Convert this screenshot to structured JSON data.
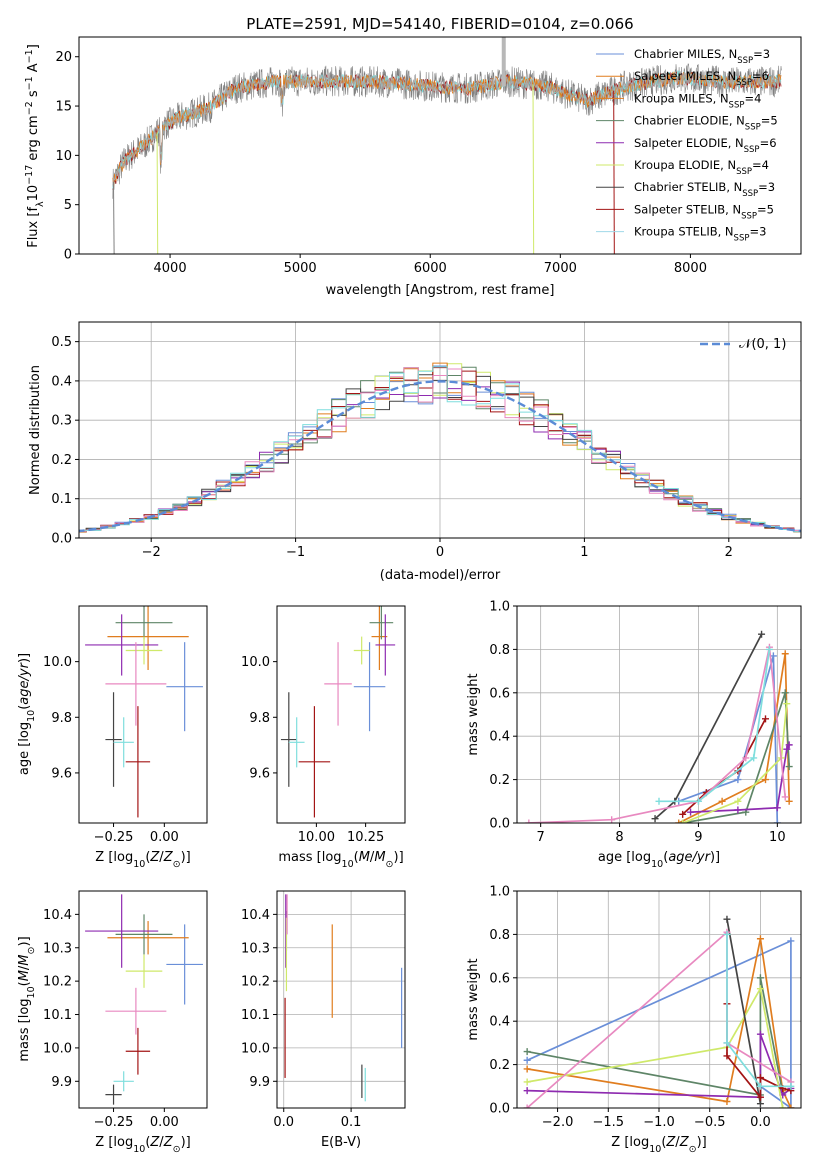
{
  "colors": [
    "#6a8fd8",
    "#e07d1f",
    "#5e8567",
    "#8e2bb0",
    "#cfe96a",
    "#444444",
    "#a31515",
    "#e889c0",
    "#7fdedd"
  ],
  "chart_data": [
    {
      "id": "spectrum",
      "type": "line",
      "title": "PLATE=2591, MJD=54140, FIBERID=0104, z=0.066",
      "xlabel": "wavelength [Angstrom, rest frame]",
      "ylabel": "Flux [f_λ10^−17 erg cm^−2 s^−1 A^−1]",
      "xlim": [
        3300,
        8850
      ],
      "ylim": [
        0,
        22
      ],
      "xticks": [
        4000,
        5000,
        6000,
        7000,
        8000
      ],
      "yticks": [
        0,
        5,
        10,
        15,
        20
      ],
      "wavelength_range": [
        3560,
        8700
      ],
      "continuum": [
        [
          3560,
          7.2
        ],
        [
          3650,
          9.5
        ],
        [
          3800,
          11
        ],
        [
          3950,
          13
        ],
        [
          4100,
          14
        ],
        [
          4300,
          14.8
        ],
        [
          4500,
          16.8
        ],
        [
          4800,
          17.5
        ],
        [
          5100,
          17.5
        ],
        [
          5400,
          17.5
        ],
        [
          5700,
          17.4
        ],
        [
          6000,
          17
        ],
        [
          6300,
          16.8
        ],
        [
          6600,
          17.5
        ],
        [
          6900,
          17
        ],
        [
          7200,
          15.5
        ],
        [
          7500,
          17
        ],
        [
          7900,
          17.9
        ],
        [
          8300,
          17.4
        ],
        [
          8700,
          17.5
        ]
      ],
      "legend": [
        {
          "name": "Chabrier MILES",
          "nssp": "3"
        },
        {
          "name": "Salpeter MILES",
          "nssp": "6"
        },
        {
          "name": "Kroupa MILES",
          "nssp": "4"
        },
        {
          "name": "Chabrier ELODIE",
          "nssp": "5"
        },
        {
          "name": "Salpeter ELODIE",
          "nssp": "6"
        },
        {
          "name": "Kroupa ELODIE",
          "nssp": "4"
        },
        {
          "name": "Chabrier STELIB",
          "nssp": "3"
        },
        {
          "name": "Salpeter STELIB",
          "nssp": "5"
        },
        {
          "name": "Kroupa STELIB",
          "nssp": "3"
        }
      ],
      "legend_colors": [
        "#6a8fd8",
        "#e07d1f",
        "#e07d1f",
        "#5e8567",
        "#8e2bb0",
        "#cfe96a",
        "#444444",
        "#a31515",
        "#9fd8e8"
      ],
      "nssp_label": "N",
      "nssp_sub": "SSP",
      "legend_loc": "top-right"
    },
    {
      "id": "residuals",
      "type": "line",
      "xlabel": "(data-model)/error",
      "ylabel": "Normed distribution",
      "xlim": [
        -2.5,
        2.5
      ],
      "ylim": [
        0,
        0.55
      ],
      "xticks": [
        -2,
        -1,
        0,
        1,
        2
      ],
      "yticks": [
        0.0,
        0.1,
        0.2,
        0.3,
        0.4,
        0.5
      ],
      "grid": true,
      "gaussian_label": "𝒩(0, 1)",
      "gaussian_color": "#5b8bd6",
      "legend_loc": "top-right"
    },
    {
      "id": "age-vs-z",
      "type": "scatter",
      "xlabel": "Z [log10(Z/Z⊙)]",
      "ylabel": "age  [log10(age/yr)]",
      "xlim": [
        -0.42,
        0.21
      ],
      "ylim": [
        9.42,
        10.2
      ],
      "xticks": [
        -0.25,
        0.0
      ],
      "yticks": [
        9.6,
        9.8,
        10.0
      ],
      "points": [
        {
          "x": 0.1,
          "y": 9.91,
          "xerr": 0.09,
          "yerr": 0.16
        },
        {
          "x": -0.08,
          "y": 10.09,
          "xerr": 0.2,
          "yerr": 0.12
        },
        {
          "x": -0.1,
          "y": 10.14,
          "xerr": 0.14,
          "yerr": 0.06
        },
        {
          "x": -0.21,
          "y": 10.06,
          "xerr": 0.18,
          "yerr": 0.11
        },
        {
          "x": -0.1,
          "y": 10.04,
          "xerr": 0.09,
          "yerr": 0.05
        },
        {
          "x": -0.25,
          "y": 9.72,
          "xerr": 0.04,
          "yerr": 0.17
        },
        {
          "x": -0.13,
          "y": 9.64,
          "xerr": 0.06,
          "yerr": 0.2
        },
        {
          "x": -0.14,
          "y": 9.92,
          "xerr": 0.15,
          "yerr": 0.15
        },
        {
          "x": -0.2,
          "y": 9.71,
          "xerr": 0.05,
          "yerr": 0.09
        }
      ]
    },
    {
      "id": "age-vs-mass",
      "type": "scatter",
      "xlabel": "mass [log10(M/M⊙)]",
      "ylabel": "",
      "xlim": [
        9.8,
        10.45
      ],
      "ylim": [
        9.42,
        10.2
      ],
      "xticks": [
        10.0,
        10.25
      ],
      "yticks": [
        9.6,
        9.8,
        10.0
      ],
      "points": [
        {
          "x": 10.27,
          "y": 9.91,
          "xerr": 0.08,
          "yerr": 0.16
        },
        {
          "x": 10.32,
          "y": 10.09,
          "xerr": 0.04,
          "yerr": 0.12
        },
        {
          "x": 10.33,
          "y": 10.14,
          "xerr": 0.06,
          "yerr": 0.06
        },
        {
          "x": 10.35,
          "y": 10.06,
          "xerr": 0.05,
          "yerr": 0.11
        },
        {
          "x": 10.23,
          "y": 10.04,
          "xerr": 0.04,
          "yerr": 0.05
        },
        {
          "x": 9.86,
          "y": 9.72,
          "xerr": 0.04,
          "yerr": 0.17
        },
        {
          "x": 9.99,
          "y": 9.64,
          "xerr": 0.08,
          "yerr": 0.2
        },
        {
          "x": 10.11,
          "y": 9.92,
          "xerr": 0.07,
          "yerr": 0.15
        },
        {
          "x": 9.9,
          "y": 9.71,
          "xerr": 0.04,
          "yerr": 0.09
        }
      ]
    },
    {
      "id": "mass-weight-vs-age",
      "type": "line",
      "xlabel": "age  [log10(age/yr)]",
      "ylabel": "mass weight",
      "xlim": [
        6.7,
        10.3
      ],
      "ylim": [
        0,
        1
      ],
      "xticks": [
        7,
        8,
        9,
        10
      ],
      "yticks": [
        0.0,
        0.2,
        0.4,
        0.6,
        0.8,
        1.0
      ],
      "grid": true,
      "series": [
        {
          "x": [
            8.75,
            9.5,
            9.95,
            10.0
          ],
          "y": [
            0.1,
            0.2,
            0.77,
            0.0
          ]
        },
        {
          "x": [
            8.75,
            9.3,
            9.85,
            10.1,
            10.15
          ],
          "y": [
            0.0,
            0.1,
            0.2,
            0.78,
            0.1
          ]
        },
        {
          "x": [
            8.8,
            9.6,
            10.1,
            10.15
          ],
          "y": [
            0.0,
            0.05,
            0.6,
            0.26
          ]
        },
        {
          "x": [
            8.9,
            9.5,
            10.0,
            10.12,
            10.15
          ],
          "y": [
            0.05,
            0.06,
            0.07,
            0.34,
            0.36
          ]
        },
        {
          "x": [
            8.8,
            9.5,
            10.05,
            10.12
          ],
          "y": [
            0.0,
            0.1,
            0.3,
            0.55
          ]
        },
        {
          "x": [
            8.45,
            8.7,
            9.8
          ],
          "y": [
            0.02,
            0.1,
            0.87
          ]
        },
        {
          "x": [
            8.8,
            9.1,
            9.5,
            9.85
          ],
          "y": [
            0.04,
            0.14,
            0.24,
            0.48
          ]
        },
        {
          "x": [
            6.85,
            7.9,
            9.0,
            9.6,
            9.9,
            10.1
          ],
          "y": [
            0.0,
            0.015,
            0.1,
            0.3,
            0.81,
            0.12
          ]
        },
        {
          "x": [
            8.5,
            9.0,
            9.7,
            9.9
          ],
          "y": [
            0.1,
            0.1,
            0.3,
            0.8
          ]
        }
      ]
    },
    {
      "id": "mass-vs-z",
      "type": "scatter",
      "xlabel": "Z [log10(Z/Z⊙)]",
      "ylabel": "mass [log10(M/M⊙)]",
      "xlim": [
        -0.42,
        0.21
      ],
      "ylim": [
        9.82,
        10.47
      ],
      "xticks": [
        -0.25,
        0.0
      ],
      "yticks": [
        9.9,
        10.0,
        10.1,
        10.2,
        10.3,
        10.4
      ],
      "points": [
        {
          "x": 0.1,
          "y": 10.25,
          "xerr": 0.09,
          "yerr": 0.12
        },
        {
          "x": -0.08,
          "y": 10.33,
          "xerr": 0.2,
          "yerr": 0.05
        },
        {
          "x": -0.1,
          "y": 10.34,
          "xerr": 0.14,
          "yerr": 0.06
        },
        {
          "x": -0.21,
          "y": 10.35,
          "xerr": 0.18,
          "yerr": 0.11
        },
        {
          "x": -0.1,
          "y": 10.23,
          "xerr": 0.09,
          "yerr": 0.05
        },
        {
          "x": -0.25,
          "y": 9.86,
          "xerr": 0.04,
          "yerr": 0.03
        },
        {
          "x": -0.13,
          "y": 9.99,
          "xerr": 0.06,
          "yerr": 0.07
        },
        {
          "x": -0.14,
          "y": 10.11,
          "xerr": 0.15,
          "yerr": 0.07
        },
        {
          "x": -0.2,
          "y": 9.9,
          "xerr": 0.05,
          "yerr": 0.03
        }
      ]
    },
    {
      "id": "mass-vs-ebv",
      "type": "scatter",
      "xlabel": "E(B-V)",
      "ylabel": "",
      "xlim": [
        -0.01,
        0.18
      ],
      "ylim": [
        9.82,
        10.47
      ],
      "xticks": [
        0.0,
        0.1
      ],
      "yticks": [
        9.9,
        10.0,
        10.1,
        10.2,
        10.3,
        10.4
      ],
      "grid": true,
      "points": [
        {
          "x": 0.175,
          "y": 10.12,
          "xerr": 0,
          "yerr": 0.12
        },
        {
          "x": 0.072,
          "y": 10.23,
          "xerr": 0,
          "yerr": 0.14
        },
        {
          "x": 0.004,
          "y": 10.35,
          "xerr": 0,
          "yerr": 0.06
        },
        {
          "x": 0.003,
          "y": 10.35,
          "xerr": 0,
          "yerr": 0.11
        },
        {
          "x": 0.004,
          "y": 10.28,
          "xerr": 0,
          "yerr": 0.11
        },
        {
          "x": 0.116,
          "y": 9.9,
          "xerr": 0,
          "yerr": 0.05
        },
        {
          "x": 0.002,
          "y": 10.03,
          "xerr": 0,
          "yerr": 0.12
        },
        {
          "x": 0.005,
          "y": 10.4,
          "xerr": 0,
          "yerr": 0.06
        },
        {
          "x": 0.121,
          "y": 9.89,
          "xerr": 0,
          "yerr": 0.05
        }
      ]
    },
    {
      "id": "mass-weight-vs-z",
      "type": "line",
      "xlabel": "Z [log10(Z/Z⊙)]",
      "ylabel": "mass weight",
      "xlim": [
        -2.4,
        0.4
      ],
      "ylim": [
        0,
        1
      ],
      "xticks": [
        -2.0,
        -1.5,
        -1.0,
        -0.5,
        0.0
      ],
      "yticks": [
        0.0,
        0.2,
        0.4,
        0.6,
        0.8,
        1.0
      ],
      "grid": true,
      "series": [
        {
          "x": [
            -2.3,
            0.3,
            0.3,
            0.0
          ],
          "y": [
            0.22,
            0.77,
            0.0,
            0.1
          ]
        },
        {
          "x": [
            -2.3,
            -0.33,
            0.0,
            0.22,
            0.3
          ],
          "y": [
            0.18,
            0.03,
            0.78,
            0.08,
            0.0
          ]
        },
        {
          "x": [
            -2.3,
            0.0,
            0.0,
            0.22
          ],
          "y": [
            0.26,
            0.06,
            0.6,
            0.07
          ]
        },
        {
          "x": [
            -2.3,
            0.0,
            0.0,
            0.22,
            0.3
          ],
          "y": [
            0.08,
            0.05,
            0.34,
            0.06,
            0.09
          ]
        },
        {
          "x": [
            -2.3,
            -0.33,
            0.0,
            0.22
          ],
          "y": [
            0.12,
            0.28,
            0.55,
            0.0
          ]
        },
        {
          "x": [
            -0.33,
            0.0,
            0.0
          ],
          "y": [
            0.87,
            0.02,
            0.1
          ]
        },
        {
          "x": [
            -0.33,
            -0.33,
            0.0,
            0.0,
            0.22,
            0.3
          ],
          "y": [
            0.48,
            0.24,
            0.05,
            0.14,
            0.09,
            0.08
          ]
        },
        {
          "x": [
            -2.3,
            -0.33,
            -0.33,
            0.3
          ],
          "y": [
            0.0,
            0.81,
            0.3,
            0.12
          ]
        },
        {
          "x": [
            -0.33,
            -0.33,
            0.0,
            0.3
          ],
          "y": [
            0.8,
            0.3,
            0.1,
            0.1
          ]
        }
      ]
    }
  ]
}
